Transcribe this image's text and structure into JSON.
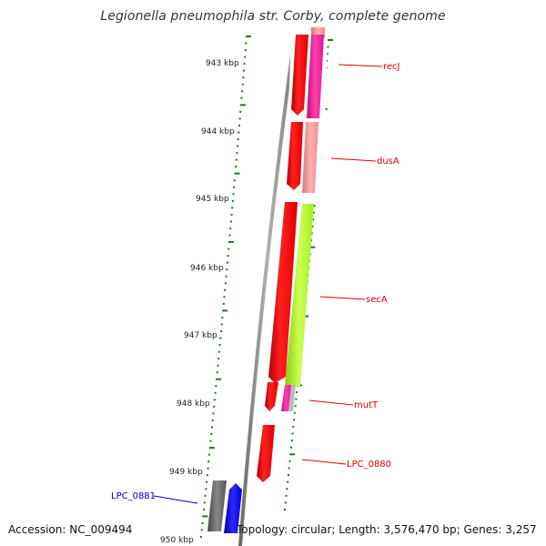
{
  "title": "Legionella pneumophila str. Corby, complete genome",
  "footer": {
    "accession": "Accession: NC_009494",
    "topology": "Topology: circular; Length: 3,576,470 bp; Genes: 3,257"
  },
  "scale_labels": [
    "943 kbp",
    "944 kbp",
    "945 kbp",
    "946 kbp",
    "947 kbp",
    "948 kbp",
    "949 kbp",
    "950 kbp"
  ],
  "gene_labels": [
    {
      "text": "recJ",
      "color": "#dd0000"
    },
    {
      "text": "dusA",
      "color": "#dd0000"
    },
    {
      "text": "secA",
      "color": "#dd0000"
    },
    {
      "text": "mutT",
      "color": "#dd0000"
    },
    {
      "text": "LPC_0880",
      "color": "#dd0000"
    },
    {
      "text": "LPC_0881",
      "color": "#0000cc"
    }
  ],
  "colors": {
    "backbone": "#8a8a8a",
    "cds": "#ff0000",
    "trna_pink": "#ee1199",
    "light_pink": "#f4a0a0",
    "lime": "#aaff22",
    "blue": "#0000ff",
    "gray_gene": "#666666",
    "tick": "#1a7a1a"
  }
}
